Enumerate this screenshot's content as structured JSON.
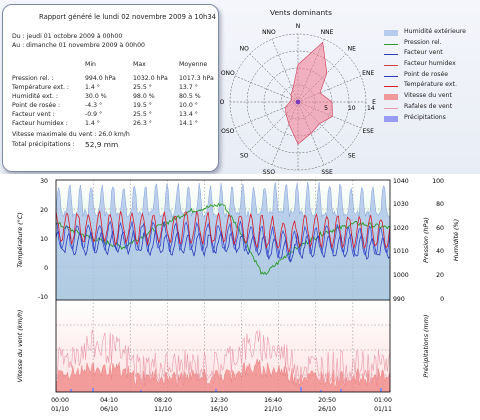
{
  "report": {
    "header": "Rapport généré le lundi 02 novembre 2009 à 10h34",
    "period_from": "Du : jeudi 01 octobre 2009 à 00h00",
    "period_to": "Au : dimanche 01 novembre 2009 à 00h00",
    "col_min": "Min",
    "col_max": "Max",
    "col_avg": "Moyenne",
    "rows": [
      {
        "label": "Pression rel. :",
        "min": "994.0 hPa",
        "max": "1032.0 hPa",
        "avg": "1017.3 hPa"
      },
      {
        "label": "Température ext. :",
        "min": "1.4 °",
        "max": "25.5 °",
        "avg": "13.7 °"
      },
      {
        "label": "Humidité ext. :",
        "min": "30.0 %",
        "max": "98.0 %",
        "avg": "80.5 %"
      },
      {
        "label": "Point de rosée :",
        "min": "-4.3 °",
        "max": "19.5 °",
        "avg": "10.0 °"
      },
      {
        "label": "Facteur vent :",
        "min": "-0.9 °",
        "max": "25.5 °",
        "avg": "13.4 °"
      },
      {
        "label": "Facteur humidex :",
        "min": "1.4 °",
        "max": "26.3 °",
        "avg": "14.1 °"
      }
    ],
    "wind_max": "Vitesse maximale du vent : 26.0 km/h",
    "precip_label": "Total précipitations :",
    "precip_value": "52,9 mm"
  },
  "compass": {
    "title": "Vents dominants",
    "directions": [
      "N",
      "NNE",
      "NE",
      "ENE",
      "E",
      "ESE",
      "SE",
      "SSE",
      "S",
      "SSO",
      "SO",
      "OSO",
      "O",
      "ONO",
      "NO",
      "NNO"
    ],
    "scale_labels": [
      "5",
      "10",
      "14"
    ]
  },
  "legend": [
    {
      "label": "Humidité extérieure",
      "color": "#aac4ec"
    },
    {
      "label": "Pression rel.",
      "color": "#2c9a2c"
    },
    {
      "label": "Facteur vent",
      "color": "#2a3ab8"
    },
    {
      "label": "Facteur humidex",
      "color": "#d24040"
    },
    {
      "label": "Point de rosée",
      "color": "#2a3ab8"
    },
    {
      "label": "Température ext.",
      "color": "#d61e2a"
    },
    {
      "label": "Vitesse du vent",
      "color": "#ef8a8a"
    },
    {
      "label": "Rafales de vent",
      "color": "#e89aa8"
    },
    {
      "label": "Précipitations",
      "color": "#8a8cf0"
    }
  ],
  "chart_data": [
    {
      "type": "line",
      "ylabel_left": "Température (°C)",
      "ylabel_right1": "Pression (hPa)",
      "ylabel_right2": "Humidité (%)",
      "ylim_left": [
        -10,
        30
      ],
      "yticks_left": [
        "30",
        "20",
        "10",
        "0",
        "-10"
      ],
      "ylim_pressure": [
        990,
        1040
      ],
      "yticks_pressure": [
        "1040",
        "1030",
        "1020",
        "1010",
        "1000",
        "990"
      ],
      "ylim_humidity": [
        0,
        100
      ],
      "yticks_humidity": [
        "100",
        "80",
        "60",
        "40",
        "20",
        "0"
      ]
    },
    {
      "type": "area",
      "ylabel_left": "Vitesse du vent (km/h)",
      "ylabel_right": "Précipitations (mm)",
      "xticks_time": [
        "00:00",
        "04:10",
        "08:20",
        "12:30",
        "16:40",
        "20:50",
        "01:00"
      ],
      "xticks_date": [
        "01/10",
        "06/10",
        "11/10",
        "16/10",
        "21/10",
        "26/10",
        "01/11"
      ]
    }
  ]
}
